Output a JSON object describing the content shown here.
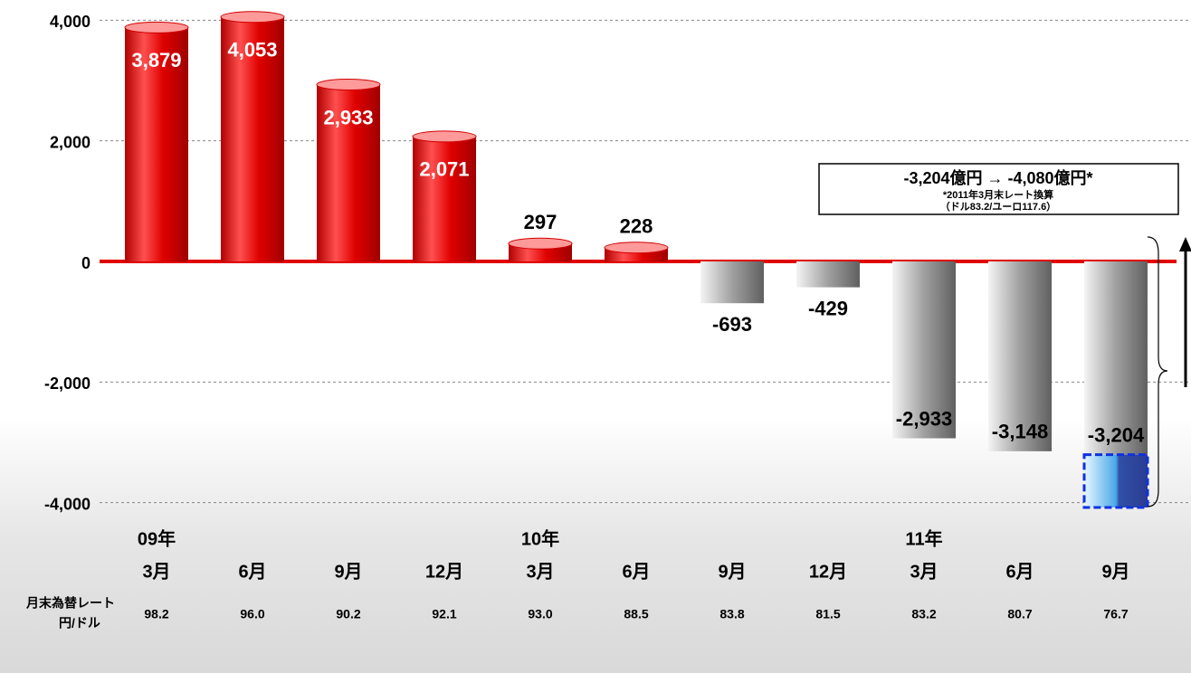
{
  "chart_data": {
    "type": "bar",
    "categories": [
      "3月",
      "6月",
      "9月",
      "12月",
      "3月",
      "6月",
      "9月",
      "12月",
      "3月",
      "6月",
      "9月"
    ],
    "years": [
      "09年",
      null,
      null,
      null,
      "10年",
      null,
      null,
      null,
      "11年",
      null,
      null
    ],
    "values": [
      3879,
      4053,
      2933,
      2071,
      297,
      228,
      -693,
      -429,
      -2933,
      -3148,
      -3204
    ],
    "value_labels": [
      "3,879",
      "4,053",
      "2,933",
      "2,071",
      "297",
      "228",
      "-693",
      "-429",
      "-2,933",
      "-3,148",
      "-3,204"
    ],
    "positive_color": "#e00000",
    "negative_color": "#8a8a8a",
    "adjusted_value": -4080,
    "ylim": [
      -4200,
      4200
    ],
    "yticks": [
      {
        "value": 4000,
        "label": "4,000"
      },
      {
        "value": 2000,
        "label": "2,000"
      },
      0,
      {
        "value": -2000,
        "label": "-2,000"
      },
      {
        "value": -4000,
        "label": "-4,000"
      }
    ],
    "grid": true,
    "rate_label": [
      "月末為替レート",
      "円/ドル"
    ],
    "rates": [
      "98.2",
      "96.0",
      "90.2",
      "92.1",
      "93.0",
      "88.5",
      "83.8",
      "81.5",
      "83.2",
      "80.7",
      "76.7"
    ],
    "annotation": [
      "-3,204億円 → -4,080億円*",
      "*2011年3月末レート換算",
      "（ドル83.2/ユーロ117.6）"
    ]
  }
}
